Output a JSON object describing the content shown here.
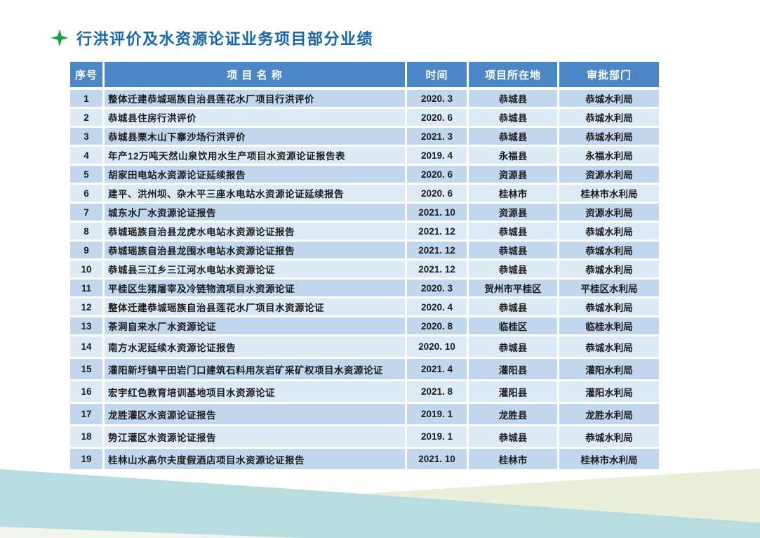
{
  "title": "行洪评价及水资源论证业务项目部分业绩",
  "title_icon": "sparkle-star-icon",
  "colors": {
    "title_text": "#1766ad",
    "star_green": "#21a04b",
    "header_bg": "#4b87c7",
    "header_text": "#ffffff",
    "row_odd_bg": "#c2d6ee",
    "row_even_bg": "#dceaf6",
    "body_text": "#1c1c1c",
    "deco_cyan": "#b8dde1",
    "deco_beige": "#e9eed9",
    "deco_white": "#f0f5ee"
  },
  "table": {
    "headers": [
      "序号",
      "项 目 名 称",
      "时间",
      "项目所在地",
      "审批部门"
    ],
    "rows": [
      {
        "no": "1",
        "name": "整体迁建恭城瑶族自治县莲花水厂项目行洪评价",
        "time": "2020. 3",
        "location": "恭城县",
        "authority": "恭城水利局"
      },
      {
        "no": "2",
        "name": "恭城县住房行洪评价",
        "time": "2020. 6",
        "location": "恭城县",
        "authority": "恭城水利局"
      },
      {
        "no": "3",
        "name": "恭城县栗木山下寨沙场行洪评价",
        "time": "2021. 3",
        "location": "恭城县",
        "authority": "恭城水利局"
      },
      {
        "no": "4",
        "name": "年产12万吨天然山泉饮用水生产项目水资源论证报告表",
        "time": "2019. 4",
        "location": "永福县",
        "authority": "永福水利局"
      },
      {
        "no": "5",
        "name": "胡家田电站水资源论证延续报告",
        "time": "2020. 6",
        "location": "资源县",
        "authority": "资源水利局"
      },
      {
        "no": "6",
        "name": "建平、洪州坝、杂木平三座水电站水资源论证延续报告",
        "time": "2020. 6",
        "location": "桂林市",
        "authority": "桂林市水利局"
      },
      {
        "no": "7",
        "name": "城东水厂水资源论证报告",
        "time": "2021. 10",
        "location": "资源县",
        "authority": "资源水利局"
      },
      {
        "no": "8",
        "name": "恭城瑶族自治县龙虎水电站水资源论证报告",
        "time": "2021. 12",
        "location": "恭城县",
        "authority": "恭城水利局"
      },
      {
        "no": "9",
        "name": "恭城瑶族自治县龙围水电站水资源论证报告",
        "time": "2021. 12",
        "location": "恭城县",
        "authority": "恭城水利局"
      },
      {
        "no": "10",
        "name": "恭城县三江乡三江河水电站水资源论证",
        "time": "2021. 12",
        "location": "恭城县",
        "authority": "恭城水利局"
      },
      {
        "no": "11",
        "name": "平桂区生猪屠宰及冷链物流项目水资源论证",
        "time": "2020. 3",
        "location": "贺州市平桂区",
        "authority": "平桂区水利局"
      },
      {
        "no": "12",
        "name": "整体迁建恭城瑶族自治县莲花水厂项目水资源论证",
        "time": "2020. 4",
        "location": "恭城县",
        "authority": "恭城水利局"
      },
      {
        "no": "13",
        "name": "茶洞自来水厂水资源论证",
        "time": "2020. 8",
        "location": "临桂区",
        "authority": "临桂水利局"
      },
      {
        "no": "14",
        "name": "南方水泥延续水资源论证报告",
        "time": "2020. 10",
        "location": "恭城县",
        "authority": "恭城水利局"
      },
      {
        "no": "15",
        "name": "灌阳新圩镇平田岩门口建筑石料用灰岩矿采矿权项目水资源论证",
        "time": "2021. 4",
        "location": "灌阳县",
        "authority": "灌阳水利局"
      },
      {
        "no": "16",
        "name": "宏宇红色教育培训基地项目水资源论证",
        "time": "2021. 8",
        "location": "灌阳县",
        "authority": "灌阳水利局"
      },
      {
        "no": "17",
        "name": "龙胜灌区水资源论证报告",
        "time": "2019. 1",
        "location": "龙胜县",
        "authority": "龙胜水利局"
      },
      {
        "no": "18",
        "name": "势江灌区水资源论证报告",
        "time": "2019. 1",
        "location": "恭城县",
        "authority": "恭城水利局"
      },
      {
        "no": "19",
        "name": "桂林山水高尔夫度假酒店项目水资源论证报告",
        "time": "2021. 10",
        "location": "桂林市",
        "authority": "桂林市水利局"
      }
    ]
  }
}
